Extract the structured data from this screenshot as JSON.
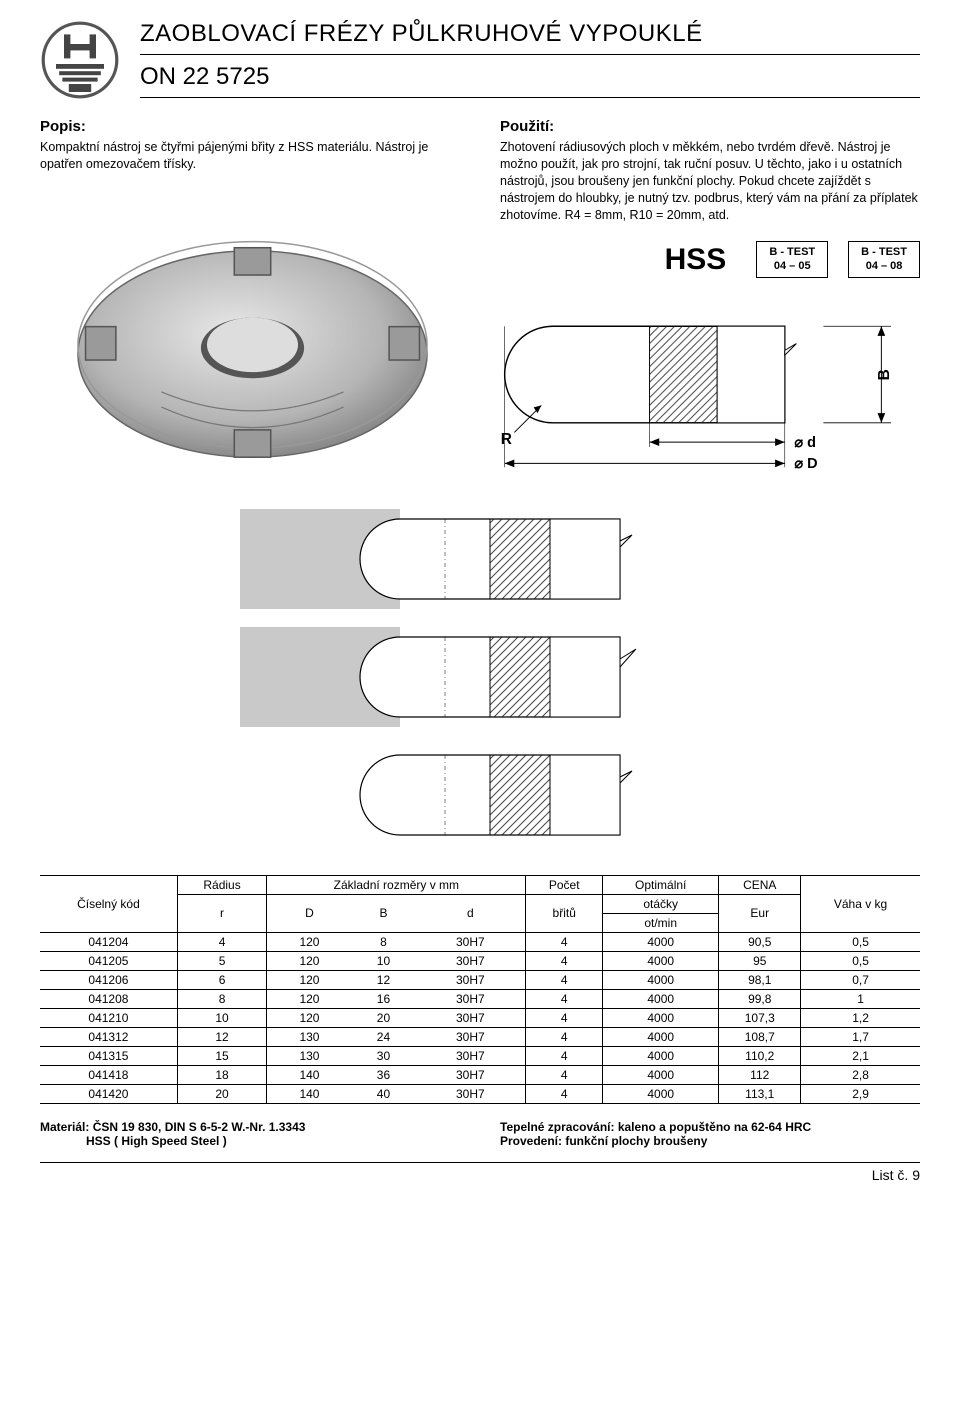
{
  "header": {
    "title": "ZAOBLOVACÍ FRÉZY PŮLKRUHOVÉ VYPOUKLÉ",
    "subtitle": "ON 22 5725"
  },
  "popis": {
    "heading": "Popis:",
    "text": "Kompaktní nástroj se čtyřmi pájenými břity z HSS materiálu. Nástroj je opatřen omezovačem třísky."
  },
  "pouziti": {
    "heading": "Použití:",
    "text": "Zhotovení rádiusových ploch v měkkém, nebo tvrdém dřevě. Nástroj je možno použít, jak pro strojní, tak ruční posuv. U těchto, jako i u ostatních nástrojů, jsou broušeny jen funkční plochy. Pokud chcete zajíždět s nástrojem do hloubky, je nutný tzv. podbrus, který vám na přání za příplatek zhotovíme. R4 = 8mm, R10 = 20mm, atd."
  },
  "labels": {
    "hss": "HSS",
    "test1_line1": "B - TEST",
    "test1_line2": "04 – 05",
    "test2_line1": "B - TEST",
    "test2_line2": "04 – 08"
  },
  "dim": {
    "R": "R",
    "d": "⌀ d",
    "D": "⌀ D",
    "B": "B"
  },
  "table": {
    "headers": {
      "code": "Číselný kód",
      "radius": "Rádius",
      "radius_sub": "r",
      "dims": "Základní rozměry v mm",
      "D": "D",
      "B": "B",
      "d": "d",
      "count": "Počet",
      "count_sub": "břitů",
      "rpm": "Optimální",
      "rpm_mid": "otáčky",
      "rpm_sub": "ot/min",
      "price": "CENA",
      "price_sub": "Eur",
      "weight": "Váha v kg"
    },
    "rows": [
      [
        "041204",
        "4",
        "120",
        "8",
        "30H7",
        "4",
        "4000",
        "90,5",
        "0,5"
      ],
      [
        "041205",
        "5",
        "120",
        "10",
        "30H7",
        "4",
        "4000",
        "95",
        "0,5"
      ],
      [
        "041206",
        "6",
        "120",
        "12",
        "30H7",
        "4",
        "4000",
        "98,1",
        "0,7"
      ],
      [
        "041208",
        "8",
        "120",
        "16",
        "30H7",
        "4",
        "4000",
        "99,8",
        "1"
      ],
      [
        "041210",
        "10",
        "120",
        "20",
        "30H7",
        "4",
        "4000",
        "107,3",
        "1,2"
      ],
      [
        "041312",
        "12",
        "130",
        "24",
        "30H7",
        "4",
        "4000",
        "108,7",
        "1,7"
      ],
      [
        "041315",
        "15",
        "130",
        "30",
        "30H7",
        "4",
        "4000",
        "110,2",
        "2,1"
      ],
      [
        "041418",
        "18",
        "140",
        "36",
        "30H7",
        "4",
        "4000",
        "112",
        "2,8"
      ],
      [
        "041420",
        "20",
        "140",
        "40",
        "30H7",
        "4",
        "4000",
        "113,1",
        "2,9"
      ]
    ]
  },
  "footer": {
    "mat_label": "Materiál: ",
    "mat_val": "ČSN 19 830, DIN S 6-5-2 W.-Nr. 1.3343",
    "mat_sub": "HSS ( High Speed Steel )",
    "heat_label": "Tepelné zpracování: ",
    "heat_val": "kaleno a popuštěno na 62-64 HRC",
    "finish_label": "Provedení: ",
    "finish_val": "funkční plochy broušeny"
  },
  "page_num": "List č. 9",
  "colors": {
    "hatch": "#444444",
    "steel": "#b9b9b9",
    "steel_dark": "#888888",
    "bg_block": "#c9c9c9"
  }
}
